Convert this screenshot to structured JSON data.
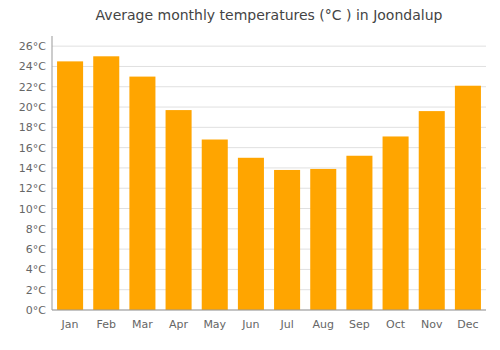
{
  "chart_data": {
    "type": "bar",
    "title": "Average monthly temperatures (°C ) in Joondalup",
    "categories": [
      "Jan",
      "Feb",
      "Mar",
      "Apr",
      "May",
      "Jun",
      "Jul",
      "Aug",
      "Sep",
      "Oct",
      "Nov",
      "Dec"
    ],
    "values": [
      24.5,
      25.0,
      23.0,
      19.7,
      16.8,
      15.0,
      13.8,
      13.9,
      15.2,
      17.1,
      19.6,
      22.1
    ],
    "color": "#FFA500",
    "ylim": [
      0,
      27
    ],
    "yticks": [
      {
        "value": 0,
        "label": "0°C"
      },
      {
        "value": 2,
        "label": "2°C"
      },
      {
        "value": 4,
        "label": "4°C"
      },
      {
        "value": 6,
        "label": "6°C"
      },
      {
        "value": 8,
        "label": "8°C"
      },
      {
        "value": 10,
        "label": "10°C"
      },
      {
        "value": 12,
        "label": "12°C"
      },
      {
        "value": 14,
        "label": "14°C"
      },
      {
        "value": 16,
        "label": "16°C"
      },
      {
        "value": 18,
        "label": "18°C"
      },
      {
        "value": 20,
        "label": "20°C"
      },
      {
        "value": 22,
        "label": "22°C"
      },
      {
        "value": 24,
        "label": "24°C"
      },
      {
        "value": 26,
        "label": "26°C"
      }
    ],
    "grid": true
  }
}
